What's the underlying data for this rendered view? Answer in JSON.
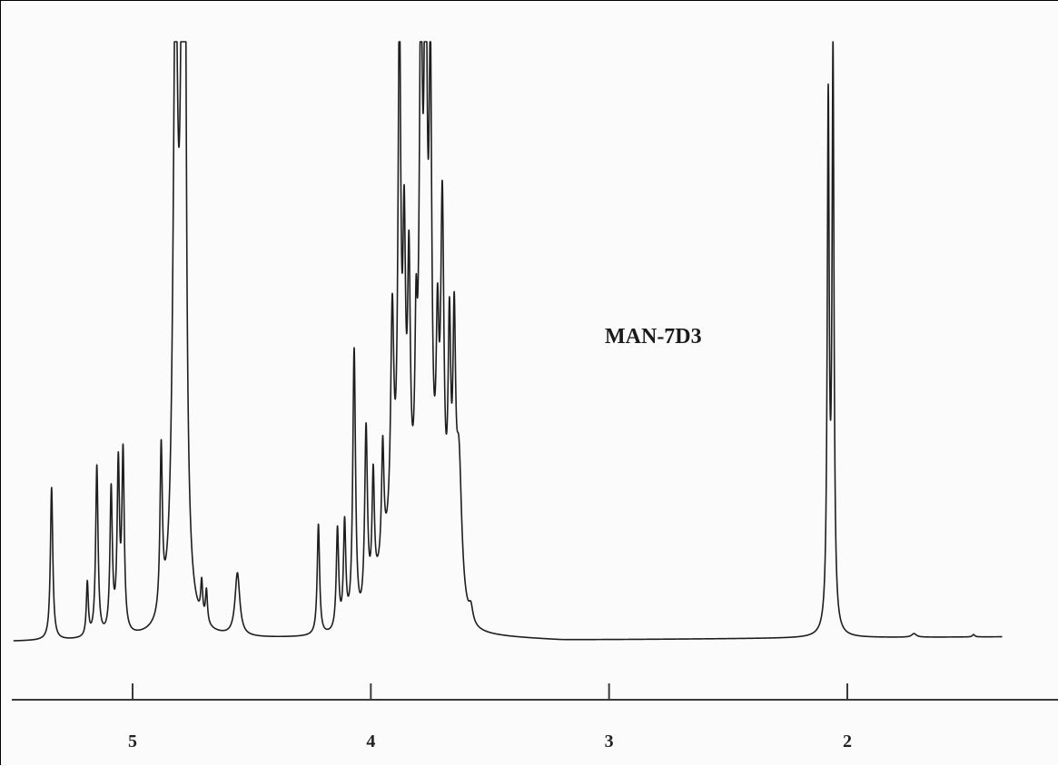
{
  "chart_data": {
    "type": "line",
    "title": "",
    "xlabel": "",
    "ylabel": "",
    "x_reversed": true,
    "xlim": [
      5.5,
      1.35
    ],
    "ylim": [
      0,
      100
    ],
    "grid": false,
    "annotations": [
      {
        "text": "MAN-7D3",
        "x": 2.75,
        "y": 52
      }
    ],
    "x_ticks": [
      {
        "value": 5,
        "label": "5"
      },
      {
        "value": 4,
        "label": "4"
      },
      {
        "value": 3,
        "label": "3"
      },
      {
        "value": 2,
        "label": "2"
      }
    ],
    "baseline": [
      [
        5.5,
        0
      ],
      [
        4.45,
        0.4
      ],
      [
        3.6,
        0.8
      ],
      [
        3.2,
        0.2
      ],
      [
        2.1,
        0.6
      ],
      [
        1.35,
        0.8
      ]
    ],
    "peaks": [
      {
        "x": 5.34,
        "h": 25.5,
        "w": 0.006
      },
      {
        "x": 5.19,
        "h": 9.0,
        "w": 0.005
      },
      {
        "x": 5.15,
        "h": 28.5,
        "w": 0.006
      },
      {
        "x": 5.09,
        "h": 24.0,
        "w": 0.006
      },
      {
        "x": 5.06,
        "h": 27.5,
        "w": 0.006
      },
      {
        "x": 5.04,
        "h": 29.5,
        "w": 0.006
      },
      {
        "x": 4.88,
        "h": 27.5,
        "w": 0.006
      },
      {
        "x": 4.82,
        "h": 100.0,
        "w": 0.012
      },
      {
        "x": 4.79,
        "h": 100.0,
        "w": 0.012
      },
      {
        "x": 4.78,
        "h": 75.0,
        "w": 0.006
      },
      {
        "x": 4.71,
        "h": 6.0,
        "w": 0.005
      },
      {
        "x": 4.69,
        "h": 5.5,
        "w": 0.005
      },
      {
        "x": 4.56,
        "h": 10.5,
        "w": 0.012
      },
      {
        "x": 4.22,
        "h": 18.5,
        "w": 0.006
      },
      {
        "x": 4.14,
        "h": 17.0,
        "w": 0.006
      },
      {
        "x": 4.11,
        "h": 17.5,
        "w": 0.006
      },
      {
        "x": 4.07,
        "h": 46.5,
        "w": 0.007
      },
      {
        "x": 4.02,
        "h": 31.0,
        "w": 0.007
      },
      {
        "x": 3.99,
        "h": 20.0,
        "w": 0.006
      },
      {
        "x": 3.95,
        "h": 19.5,
        "w": 0.006
      },
      {
        "x": 3.91,
        "h": 37.0,
        "w": 0.008
      },
      {
        "x": 3.88,
        "h": 85.0,
        "w": 0.007
      },
      {
        "x": 3.86,
        "h": 44.0,
        "w": 0.007
      },
      {
        "x": 3.84,
        "h": 41.0,
        "w": 0.007
      },
      {
        "x": 3.81,
        "h": 26.0,
        "w": 0.006
      },
      {
        "x": 3.79,
        "h": 80.5,
        "w": 0.008
      },
      {
        "x": 3.77,
        "h": 89.0,
        "w": 0.008
      },
      {
        "x": 3.75,
        "h": 70.0,
        "w": 0.007
      },
      {
        "x": 3.72,
        "h": 30.0,
        "w": 0.007
      },
      {
        "x": 3.7,
        "h": 55.0,
        "w": 0.008
      },
      {
        "x": 3.67,
        "h": 36.5,
        "w": 0.007
      },
      {
        "x": 3.65,
        "h": 38.0,
        "w": 0.007
      },
      {
        "x": 3.63,
        "h": 23.0,
        "w": 0.014
      },
      {
        "x": 3.58,
        "h": 2.5,
        "w": 0.01
      },
      {
        "x": 2.08,
        "h": 87.0,
        "w": 0.005
      },
      {
        "x": 2.06,
        "h": 95.0,
        "w": 0.005
      },
      {
        "x": 1.72,
        "h": 0.6,
        "w": 0.012
      },
      {
        "x": 1.47,
        "h": 0.4,
        "w": 0.006
      }
    ],
    "ui": {
      "axis_color": "#3a3a3a",
      "trace_color": "#1e1e1e",
      "background": "#fbfbfb"
    }
  }
}
